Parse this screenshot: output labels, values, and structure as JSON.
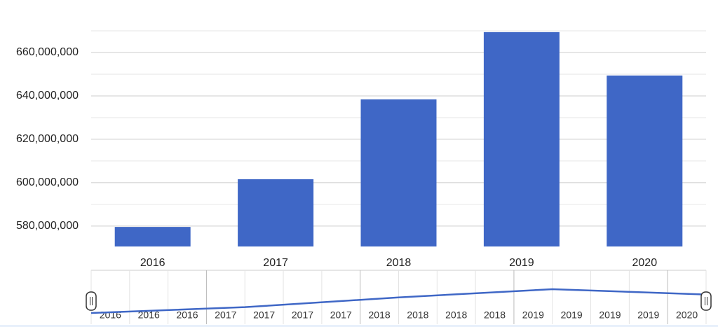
{
  "chart_data": {
    "type": "bar",
    "categories": [
      "2016",
      "2017",
      "2018",
      "2019",
      "2020"
    ],
    "values": [
      579600000,
      601600000,
      638400000,
      669400000,
      649400000
    ],
    "color": "#3f67c6",
    "ylim": [
      570600000,
      670000000
    ],
    "yticks": [
      {
        "value": 580000000,
        "label": "580,000,000"
      },
      {
        "value": 600000000,
        "label": "600,000,000"
      },
      {
        "value": 620000000,
        "label": "620,000,000"
      },
      {
        "value": 640000000,
        "label": "640,000,000"
      },
      {
        "value": 660000000,
        "label": "660,000,000"
      }
    ],
    "minor_yticks": [
      590000000,
      610000000,
      630000000,
      650000000,
      670000000
    ],
    "grid": true,
    "navigator": {
      "labels": [
        "2016",
        "2016",
        "2016",
        "2017",
        "2017",
        "2017",
        "2017",
        "2018",
        "2018",
        "2018",
        "2018",
        "2019",
        "2019",
        "2019",
        "2019",
        "2020"
      ]
    }
  }
}
